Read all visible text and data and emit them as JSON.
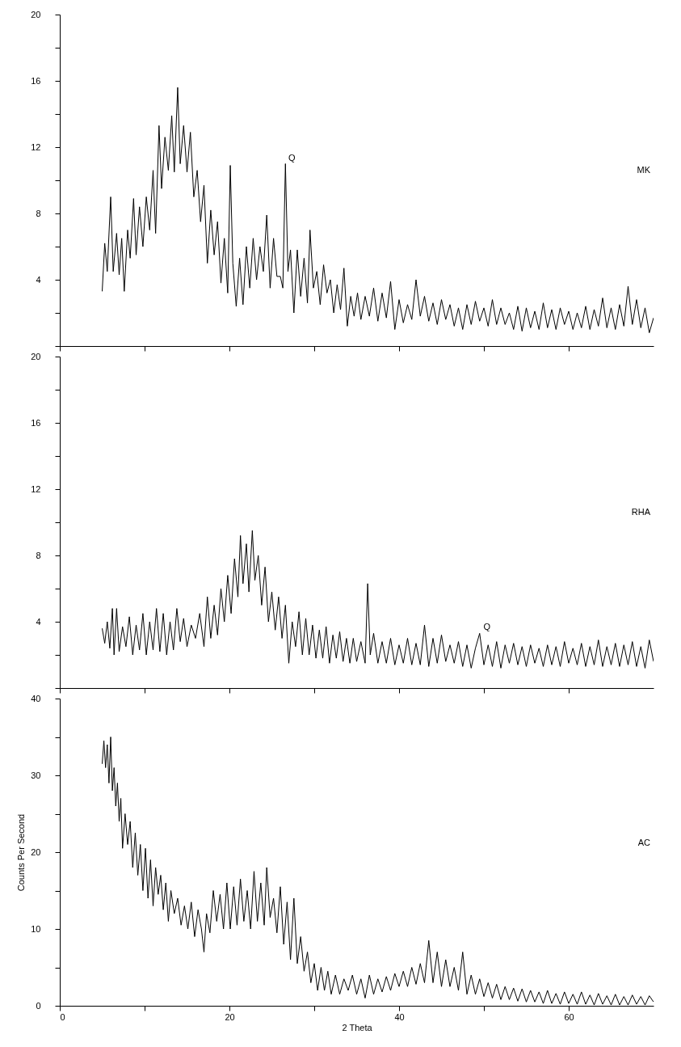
{
  "chart_data": [
    {
      "type": "line",
      "x": [
        5,
        5.3,
        5.6,
        6,
        6.3,
        6.7,
        7,
        7.3,
        7.6,
        8,
        8.3,
        8.7,
        9,
        9.4,
        9.8,
        10.2,
        10.6,
        11,
        11.3,
        11.7,
        12,
        12.4,
        12.8,
        13.2,
        13.5,
        13.9,
        14.2,
        14.6,
        15,
        15.4,
        15.8,
        16.2,
        16.6,
        17,
        17.4,
        17.8,
        18.2,
        18.6,
        19,
        19.4,
        19.8,
        20.1,
        20.4,
        20.8,
        21.2,
        21.6,
        22,
        22.4,
        22.8,
        23.2,
        23.6,
        24,
        24.4,
        24.8,
        25.2,
        25.6,
        26,
        26.3,
        26.6,
        26.9,
        27.2,
        27.6,
        28,
        28.4,
        28.8,
        29.2,
        29.5,
        29.9,
        30.3,
        30.7,
        31.1,
        31.5,
        31.9,
        32.3,
        32.7,
        33.1,
        33.5,
        33.9,
        34.3,
        34.7,
        35.1,
        35.5,
        36,
        36.5,
        37,
        37.5,
        38,
        38.5,
        39,
        39.5,
        40,
        40.5,
        41,
        41.5,
        42,
        42.5,
        43,
        43.5,
        44,
        44.5,
        45,
        45.5,
        46,
        46.5,
        47,
        47.5,
        48,
        48.5,
        49,
        49.5,
        50,
        50.5,
        51,
        51.5,
        52,
        52.5,
        53,
        53.5,
        54,
        54.5,
        55,
        55.5,
        56,
        56.5,
        57,
        57.5,
        58,
        58.5,
        59,
        59.5,
        60,
        60.5,
        61,
        61.5,
        62,
        62.5,
        63,
        63.5,
        64,
        64.5,
        65,
        65.5,
        66,
        66.5,
        67,
        67.5,
        68,
        68.5,
        69,
        69.5,
        70
      ],
      "series": [
        {
          "name": "MK",
          "color": "#000000",
          "values": [
            3.3,
            6.2,
            4.5,
            9.0,
            4.5,
            6.8,
            4.3,
            6.5,
            3.3,
            7.0,
            5.3,
            8.9,
            5.5,
            8.4,
            6.0,
            9.0,
            7.0,
            10.6,
            6.8,
            13.3,
            9.5,
            12.6,
            10.6,
            13.9,
            10.5,
            15.6,
            11.0,
            13.3,
            10.5,
            12.9,
            9.0,
            10.6,
            7.5,
            9.7,
            5.0,
            8.2,
            5.5,
            7.5,
            3.8,
            6.5,
            3.2,
            10.9,
            5.0,
            2.4,
            5.3,
            2.5,
            6.0,
            3.5,
            6.5,
            4.0,
            6.0,
            4.5,
            7.9,
            3.5,
            6.5,
            4.2,
            4.2,
            3.5,
            11.0,
            4.5,
            5.8,
            2.0,
            5.8,
            3.0,
            5.3,
            2.6,
            7.0,
            3.5,
            4.5,
            2.5,
            4.9,
            3.2,
            4.0,
            2.0,
            3.7,
            2.2,
            4.7,
            1.2,
            3.0,
            1.8,
            3.2,
            1.6,
            3.0,
            1.8,
            3.5,
            1.5,
            3.2,
            1.7,
            3.9,
            1.0,
            2.8,
            1.4,
            2.5,
            1.6,
            4.0,
            1.8,
            3.0,
            1.5,
            2.6,
            1.3,
            2.8,
            1.6,
            2.5,
            1.2,
            2.3,
            1.0,
            2.5,
            1.3,
            2.7,
            1.5,
            2.3,
            1.2,
            2.8,
            1.3,
            2.3,
            1.3,
            2.0,
            1.0,
            2.4,
            0.9,
            2.3,
            1.1,
            2.1,
            1.0,
            2.6,
            1.1,
            2.2,
            1.0,
            2.3,
            1.3,
            2.1,
            1.0,
            2.0,
            1.1,
            2.4,
            1.0,
            2.2,
            1.2,
            2.9,
            1.1,
            2.3,
            1.0,
            2.5,
            1.2,
            3.6,
            1.3,
            2.8,
            1.1,
            2.3,
            0.8,
            1.7
          ]
        }
      ],
      "xlim": [
        0,
        70
      ],
      "xticks": [
        0,
        {
          "value": 10,
          "label": null
        },
        20,
        {
          "value": 30,
          "label": null
        },
        40,
        {
          "value": 50,
          "label": null
        },
        60
      ],
      "ylim": [
        0,
        20
      ],
      "yticks": [
        {
          "value": 0,
          "label": null
        },
        {
          "value": 2,
          "label": null
        },
        4,
        {
          "value": 6,
          "label": null
        },
        8,
        {
          "value": 10,
          "label": null
        },
        12,
        {
          "value": 14,
          "label": null
        },
        16,
        {
          "value": 18,
          "label": null
        },
        20
      ],
      "tick_labels": "y",
      "annotations": [
        {
          "text": "Q",
          "x": 26.6,
          "y": 11.0
        }
      ]
    },
    {
      "type": "line",
      "x": [
        5,
        5.3,
        5.6,
        5.9,
        6.2,
        6.4,
        6.7,
        7,
        7.4,
        7.8,
        8.2,
        8.6,
        9,
        9.4,
        9.8,
        10.2,
        10.6,
        11,
        11.4,
        11.8,
        12.2,
        12.6,
        13,
        13.4,
        13.8,
        14.2,
        14.6,
        15,
        15.5,
        16,
        16.5,
        17,
        17.4,
        17.8,
        18.2,
        18.6,
        19,
        19.4,
        19.8,
        20.2,
        20.6,
        21,
        21.3,
        21.6,
        22,
        22.3,
        22.7,
        23,
        23.4,
        23.8,
        24.2,
        24.6,
        25,
        25.4,
        25.8,
        26.2,
        26.6,
        27,
        27.4,
        27.8,
        28.2,
        28.6,
        29,
        29.4,
        29.8,
        30.2,
        30.6,
        31,
        31.4,
        31.8,
        32.2,
        32.6,
        33,
        33.4,
        33.8,
        34.2,
        34.6,
        35,
        35.5,
        36,
        36.3,
        36.6,
        37,
        37.5,
        38,
        38.5,
        39,
        39.5,
        40,
        40.5,
        41,
        41.5,
        42,
        42.5,
        43,
        43.5,
        44,
        44.5,
        45,
        45.5,
        46,
        46.5,
        47,
        47.5,
        48,
        48.5,
        49,
        49.5,
        50,
        50.5,
        51,
        51.5,
        52,
        52.5,
        53,
        53.5,
        54,
        54.5,
        55,
        55.5,
        56,
        56.5,
        57,
        57.5,
        58,
        58.5,
        59,
        59.5,
        60,
        60.5,
        61,
        61.5,
        62,
        62.5,
        63,
        63.5,
        64,
        64.5,
        65,
        65.5,
        66,
        66.5,
        67,
        67.5,
        68,
        68.5,
        69,
        69.5,
        70
      ],
      "series": [
        {
          "name": "RHA",
          "color": "#000000",
          "values": [
            3.6,
            2.7,
            4.0,
            2.4,
            4.8,
            2.0,
            4.8,
            2.2,
            3.7,
            2.5,
            4.3,
            2.0,
            3.8,
            2.3,
            4.5,
            2.0,
            4.0,
            2.3,
            4.8,
            2.2,
            4.5,
            2.0,
            4.0,
            2.3,
            4.8,
            2.8,
            4.2,
            2.5,
            3.8,
            3.0,
            4.5,
            2.5,
            5.5,
            3.0,
            5.0,
            3.2,
            6.0,
            4.0,
            6.8,
            4.5,
            7.8,
            5.5,
            9.2,
            6.3,
            8.7,
            5.8,
            9.5,
            6.5,
            8.0,
            5.0,
            7.3,
            4.0,
            5.8,
            3.5,
            5.5,
            3.0,
            5.0,
            1.5,
            4.0,
            2.5,
            4.6,
            2.0,
            4.2,
            2.0,
            3.8,
            1.8,
            3.5,
            1.8,
            3.7,
            1.5,
            3.2,
            1.8,
            3.4,
            1.6,
            3.0,
            1.5,
            3.0,
            1.6,
            2.8,
            1.5,
            6.3,
            2.0,
            3.3,
            1.5,
            2.8,
            1.5,
            3.0,
            1.4,
            2.6,
            1.5,
            3.0,
            1.4,
            2.7,
            1.4,
            3.8,
            1.3,
            3.0,
            1.5,
            3.2,
            1.6,
            2.6,
            1.5,
            2.8,
            1.3,
            2.6,
            1.2,
            2.4,
            3.3,
            1.4,
            2.6,
            1.3,
            2.8,
            1.2,
            2.6,
            1.5,
            2.7,
            1.4,
            2.5,
            1.3,
            2.6,
            1.5,
            2.4,
            1.3,
            2.6,
            1.4,
            2.5,
            1.3,
            2.8,
            1.5,
            2.4,
            1.4,
            2.7,
            1.3,
            2.5,
            1.4,
            2.9,
            1.3,
            2.5,
            1.4,
            2.7,
            1.3,
            2.6,
            1.4,
            2.8,
            1.3,
            2.5,
            1.2,
            2.9,
            1.6
          ]
        }
      ],
      "xlim": [
        0,
        70
      ],
      "xticks": [
        0,
        {
          "value": 10,
          "label": null
        },
        20,
        {
          "value": 30,
          "label": null
        },
        40,
        {
          "value": 50,
          "label": null
        },
        60
      ],
      "ylim": [
        0,
        20
      ],
      "yticks": [
        {
          "value": 0,
          "label": null
        },
        {
          "value": 2,
          "label": null
        },
        4,
        {
          "value": 6,
          "label": null
        },
        8,
        {
          "value": 10,
          "label": null
        },
        12,
        {
          "value": 14,
          "label": null
        },
        16,
        {
          "value": 18,
          "label": null
        },
        20
      ],
      "tick_labels": "y",
      "annotations": [
        {
          "text": "Q",
          "x": 49.6,
          "y": 3.3
        }
      ]
    },
    {
      "type": "line",
      "x": [
        5,
        5.2,
        5.4,
        5.6,
        5.8,
        6,
        6.2,
        6.4,
        6.6,
        6.8,
        7,
        7.2,
        7.4,
        7.7,
        8,
        8.3,
        8.6,
        8.9,
        9.2,
        9.5,
        9.8,
        10.1,
        10.4,
        10.7,
        11,
        11.3,
        11.6,
        11.9,
        12.2,
        12.5,
        12.8,
        13.1,
        13.5,
        13.9,
        14.3,
        14.7,
        15.1,
        15.5,
        15.9,
        16.3,
        16.7,
        17,
        17.3,
        17.7,
        18.1,
        18.5,
        18.9,
        19.3,
        19.7,
        20.1,
        20.5,
        20.9,
        21.3,
        21.7,
        22.1,
        22.5,
        22.9,
        23.3,
        23.7,
        24.1,
        24.4,
        24.8,
        25.2,
        25.6,
        26,
        26.4,
        26.8,
        27.2,
        27.6,
        28,
        28.4,
        28.8,
        29.2,
        29.6,
        30,
        30.4,
        30.8,
        31.2,
        31.6,
        32,
        32.5,
        33,
        33.5,
        34,
        34.5,
        35,
        35.5,
        36,
        36.5,
        37,
        37.5,
        38,
        38.5,
        39,
        39.5,
        40,
        40.5,
        41,
        41.5,
        42,
        42.5,
        43,
        43.5,
        44,
        44.5,
        45,
        45.5,
        46,
        46.5,
        47,
        47.5,
        48,
        48.5,
        49,
        49.5,
        50,
        50.5,
        51,
        51.5,
        52,
        52.5,
        53,
        53.5,
        54,
        54.5,
        55,
        55.5,
        56,
        56.5,
        57,
        57.5,
        58,
        58.5,
        59,
        59.5,
        60,
        60.5,
        61,
        61.5,
        62,
        62.5,
        63,
        63.5,
        64,
        64.5,
        65,
        65.5,
        66,
        66.5,
        67,
        67.5,
        68,
        68.5,
        69,
        69.5,
        70
      ],
      "series": [
        {
          "name": "AC",
          "color": "#000000",
          "values": [
            31.5,
            34.5,
            31,
            34,
            29,
            35,
            28,
            31,
            26,
            29,
            24,
            27,
            20.5,
            25,
            21,
            24,
            18,
            22.5,
            17,
            21,
            15,
            20.5,
            14,
            19,
            13,
            18,
            14.5,
            17,
            12.5,
            16,
            11,
            15,
            12,
            14,
            10.5,
            13,
            10,
            13.5,
            9,
            12.5,
            10,
            7,
            12,
            9.5,
            15,
            11,
            14.5,
            10,
            16,
            10,
            15.5,
            10.5,
            16.5,
            11,
            15,
            10,
            17.5,
            11,
            16,
            10.5,
            18,
            11.5,
            14,
            9.5,
            15.5,
            8,
            13.5,
            6,
            14,
            5.5,
            9,
            4.5,
            7,
            3,
            5.5,
            2,
            5,
            2,
            4.5,
            1.5,
            4,
            1.5,
            3.5,
            2,
            4,
            1.5,
            3.5,
            1,
            4,
            1.5,
            3.5,
            1.8,
            3.8,
            2,
            4.2,
            2.5,
            4.5,
            2.5,
            5,
            2.8,
            5.5,
            3,
            8.5,
            3,
            7,
            2.5,
            6,
            2.5,
            5,
            2,
            7,
            1.5,
            4,
            1.5,
            3.5,
            1.2,
            3,
            1,
            2.8,
            0.8,
            2.5,
            0.8,
            2.3,
            0.6,
            2.2,
            0.5,
            2,
            0.5,
            1.8,
            0.3,
            2,
            0.3,
            1.6,
            0.2,
            1.8,
            0.3,
            1.5,
            0.2,
            1.8,
            0.2,
            1.4,
            0.1,
            1.6,
            0.2,
            1.3,
            0.1,
            1.5,
            0.1,
            1.2,
            0.1,
            1.4,
            0.2,
            1.2,
            0.1,
            1.3,
            0.5
          ]
        }
      ],
      "xlim": [
        0,
        70
      ],
      "xticks": [
        0,
        {
          "value": 10,
          "label": null
        },
        20,
        {
          "value": 30,
          "label": null
        },
        40,
        {
          "value": 50,
          "label": null
        },
        60
      ],
      "ylim": [
        0,
        40
      ],
      "yticks": [
        0,
        {
          "value": 5,
          "label": null
        },
        10,
        {
          "value": 15,
          "label": null
        },
        20,
        {
          "value": 25,
          "label": null
        },
        30,
        {
          "value": 35,
          "label": null
        },
        40
      ],
      "xlabel": "2 Theta",
      "ylabel": "Counts Per Second"
    }
  ]
}
